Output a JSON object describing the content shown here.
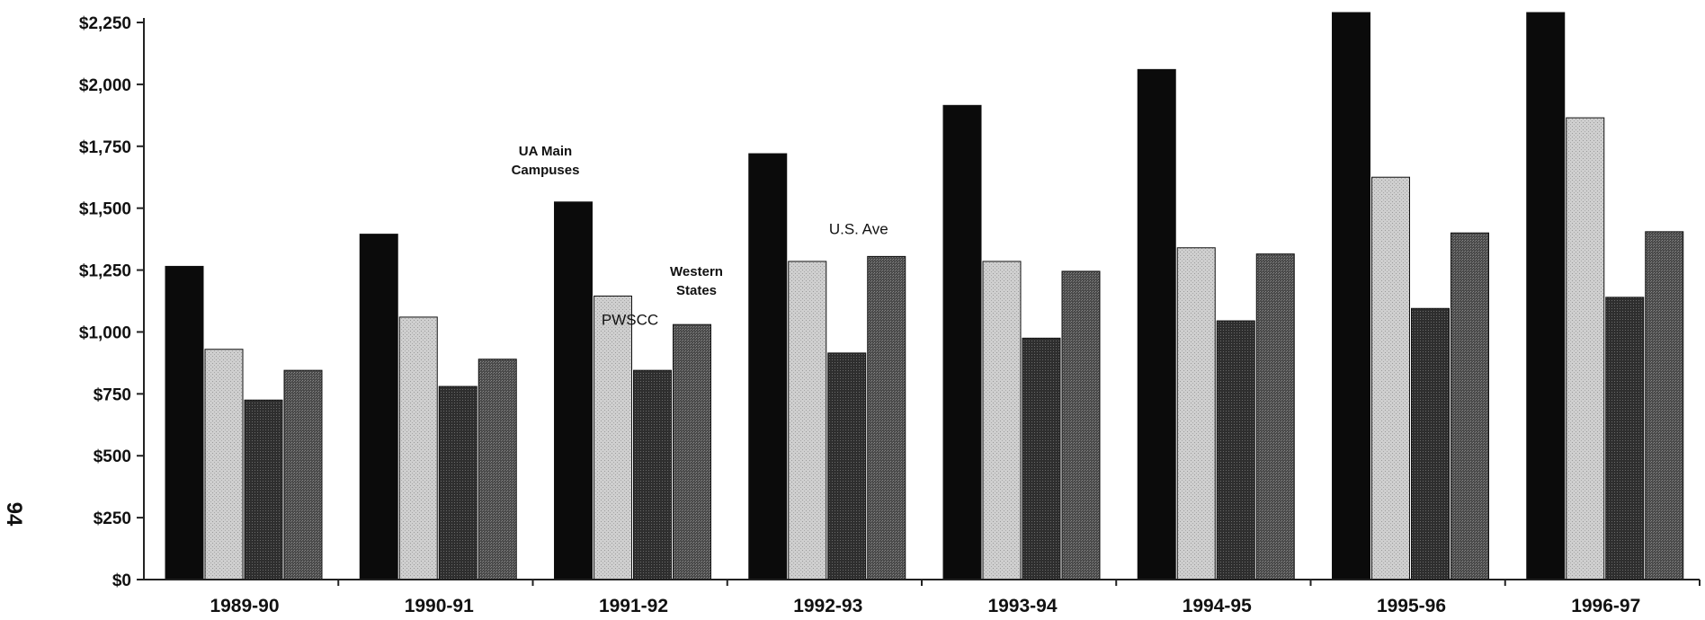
{
  "page_number": "94",
  "chart_data": {
    "type": "bar",
    "title": "",
    "xlabel": "",
    "ylabel": "",
    "ylim": [
      0,
      2250
    ],
    "yticks": [
      "$0",
      "$250",
      "$500",
      "$750",
      "$1,000",
      "$1,250",
      "$1,500",
      "$1,750",
      "$2,000",
      "$2,250"
    ],
    "categories": [
      "1989-90",
      "1990-91",
      "1991-92",
      "1992-93",
      "1993-94",
      "1994-95",
      "1995-96",
      "1996-97"
    ],
    "series": [
      {
        "name": "UA Main Campuses",
        "color": "#0c0c0c",
        "values": [
          1265,
          1395,
          1525,
          1720,
          1915,
          2060,
          2290,
          2290
        ]
      },
      {
        "name": "PWSCC",
        "color": "#d3d3d3",
        "values": [
          930,
          1060,
          1145,
          1285,
          1285,
          1340,
          1625,
          1865
        ]
      },
      {
        "name": "Western States",
        "color": "#333333",
        "values": [
          725,
          780,
          845,
          915,
          975,
          1045,
          1095,
          1140
        ]
      },
      {
        "name": "U.S. Ave",
        "color": "#5e5e5e",
        "values": [
          845,
          890,
          1030,
          1305,
          1245,
          1315,
          1400,
          1405
        ]
      }
    ],
    "annotations": [
      {
        "lines": [
          "UA Main",
          "Campuses"
        ],
        "series": "UA Main Campuses"
      },
      {
        "lines": [
          "PWSCC"
        ],
        "series": "PWSCC"
      },
      {
        "lines": [
          "Western",
          "States"
        ],
        "series": "Western States"
      },
      {
        "lines": [
          "U.S. Ave"
        ],
        "series": "U.S. Ave"
      }
    ],
    "grid": false,
    "legend": "none"
  }
}
